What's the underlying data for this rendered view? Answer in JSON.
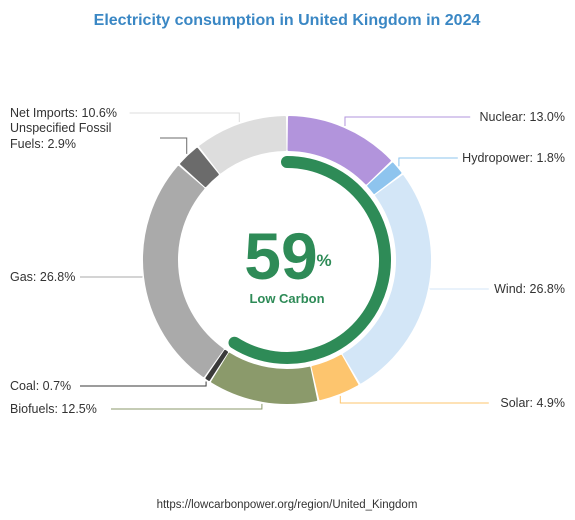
{
  "chart_data": {
    "type": "pie",
    "style": "donut",
    "title": "Electricity consumption in United Kingdom in 2024",
    "title_color": "#3a87c4",
    "slices": [
      {
        "label": "Nuclear: 13.0%",
        "value": 13.0,
        "color": "#b294dc"
      },
      {
        "label": "Hydropower: 1.8%",
        "value": 1.8,
        "color": "#8ec4ee"
      },
      {
        "label": "Wind: 26.8%",
        "value": 26.8,
        "color": "#d3e6f7"
      },
      {
        "label": "Solar: 4.9%",
        "value": 4.9,
        "color": "#fdc56e"
      },
      {
        "label": "Biofuels: 12.5%",
        "value": 12.5,
        "color": "#8b9a6b"
      },
      {
        "label": "Coal: 0.7%",
        "value": 0.7,
        "color": "#3a3a3a"
      },
      {
        "label": "Gas: 26.8%",
        "value": 26.8,
        "color": "#aaaaaa"
      },
      {
        "label": "Unspecified Fossil Fuels: 2.9%",
        "value": 2.9,
        "color": "#6b6b6b"
      },
      {
        "label": "Net Imports: 10.6%",
        "value": 10.6,
        "color": "#dddddd"
      }
    ],
    "center": {
      "value": "59",
      "unit": "%",
      "label": "Low Carbon",
      "fraction": 0.59,
      "color": "#2e8b57"
    },
    "source": "https://lowcarbonpower.org/region/United_Kingdom"
  }
}
